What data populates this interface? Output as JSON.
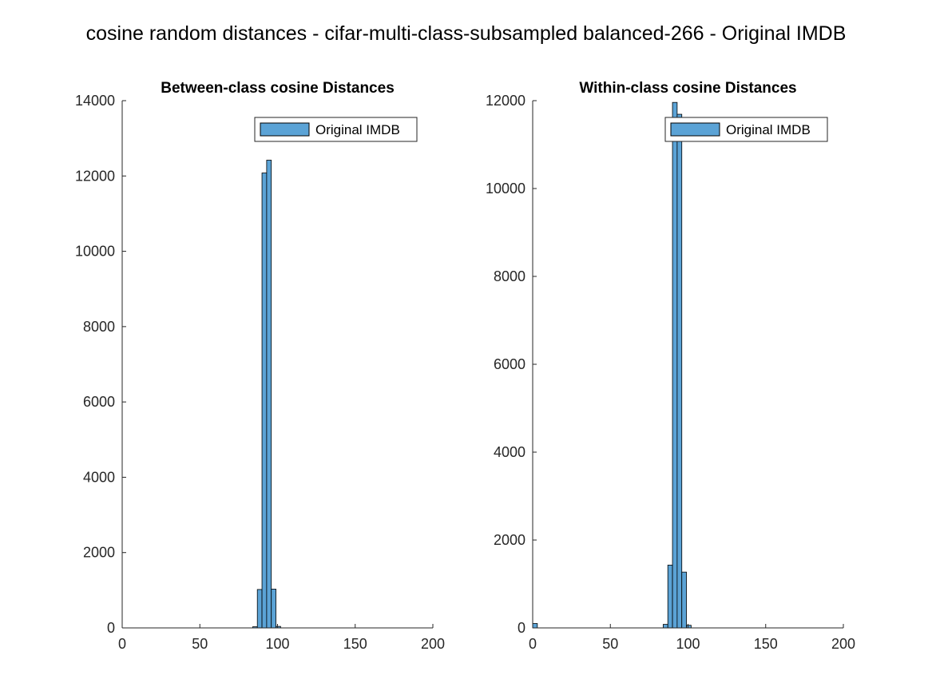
{
  "figure": {
    "title": "cosine random distances - cifar-multi-class-subsampled balanced-266 - Original IMDB"
  },
  "chart_data": [
    {
      "type": "bar",
      "title": "Between-class cosine Distances",
      "xlabel": "",
      "ylabel": "",
      "xlim": [
        0,
        200
      ],
      "ylim": [
        0,
        14000
      ],
      "xticks": [
        0,
        50,
        100,
        150,
        200
      ],
      "yticks": [
        0,
        2000,
        4000,
        6000,
        8000,
        10000,
        12000,
        14000
      ],
      "legend": "top-right",
      "grid": false,
      "series": [
        {
          "name": "Original IMDB",
          "color": "#5ba3d6",
          "bin_edges": [
            0,
            3,
            6,
            9,
            12,
            15,
            18,
            21,
            24,
            27,
            30,
            33,
            36,
            39,
            42,
            45,
            48,
            51,
            54,
            57,
            60,
            63,
            66,
            69,
            72,
            75,
            78,
            81,
            84,
            87,
            90,
            93,
            96,
            99,
            102,
            105,
            108,
            111,
            114,
            117,
            120,
            123,
            126,
            129,
            132,
            135,
            138,
            141,
            144,
            147,
            150,
            153,
            156,
            159,
            162,
            165,
            168,
            171,
            174,
            177,
            180
          ],
          "counts": [
            0,
            0,
            0,
            0,
            0,
            0,
            0,
            0,
            0,
            0,
            0,
            0,
            0,
            0,
            0,
            0,
            0,
            0,
            0,
            0,
            0,
            0,
            0,
            0,
            0,
            0,
            0,
            0,
            30,
            1020,
            12080,
            12420,
            1030,
            40,
            0,
            0,
            0,
            0,
            0,
            0,
            0,
            0,
            0,
            0,
            0,
            0,
            0,
            0,
            0,
            0,
            0,
            0,
            0,
            0,
            0,
            0,
            0,
            0,
            0,
            0
          ]
        }
      ]
    },
    {
      "type": "bar",
      "title": "Within-class cosine Distances",
      "xlabel": "",
      "ylabel": "",
      "xlim": [
        0,
        200
      ],
      "ylim": [
        0,
        12000
      ],
      "xticks": [
        0,
        50,
        100,
        150,
        200
      ],
      "yticks": [
        0,
        2000,
        4000,
        6000,
        8000,
        10000,
        12000
      ],
      "legend": "top-right",
      "grid": false,
      "series": [
        {
          "name": "Original IMDB",
          "color": "#5ba3d6",
          "bin_edges": [
            0,
            3,
            6,
            9,
            12,
            15,
            18,
            21,
            24,
            27,
            30,
            33,
            36,
            39,
            42,
            45,
            48,
            51,
            54,
            57,
            60,
            63,
            66,
            69,
            72,
            75,
            78,
            81,
            84,
            87,
            90,
            93,
            96,
            99,
            102,
            105,
            108,
            111,
            114,
            117,
            120,
            123,
            126,
            129,
            132,
            135,
            138,
            141,
            144,
            147,
            150,
            153,
            156,
            159,
            162,
            165,
            168,
            171,
            174,
            177,
            180
          ],
          "counts": [
            100,
            0,
            0,
            0,
            0,
            0,
            0,
            0,
            0,
            0,
            0,
            0,
            0,
            0,
            0,
            0,
            0,
            0,
            0,
            0,
            0,
            0,
            0,
            0,
            0,
            0,
            0,
            0,
            80,
            1430,
            11960,
            11690,
            1270,
            60,
            0,
            0,
            0,
            0,
            0,
            0,
            0,
            0,
            0,
            0,
            0,
            0,
            0,
            0,
            0,
            0,
            0,
            0,
            0,
            0,
            0,
            0,
            0,
            0,
            0,
            0
          ]
        }
      ]
    }
  ]
}
